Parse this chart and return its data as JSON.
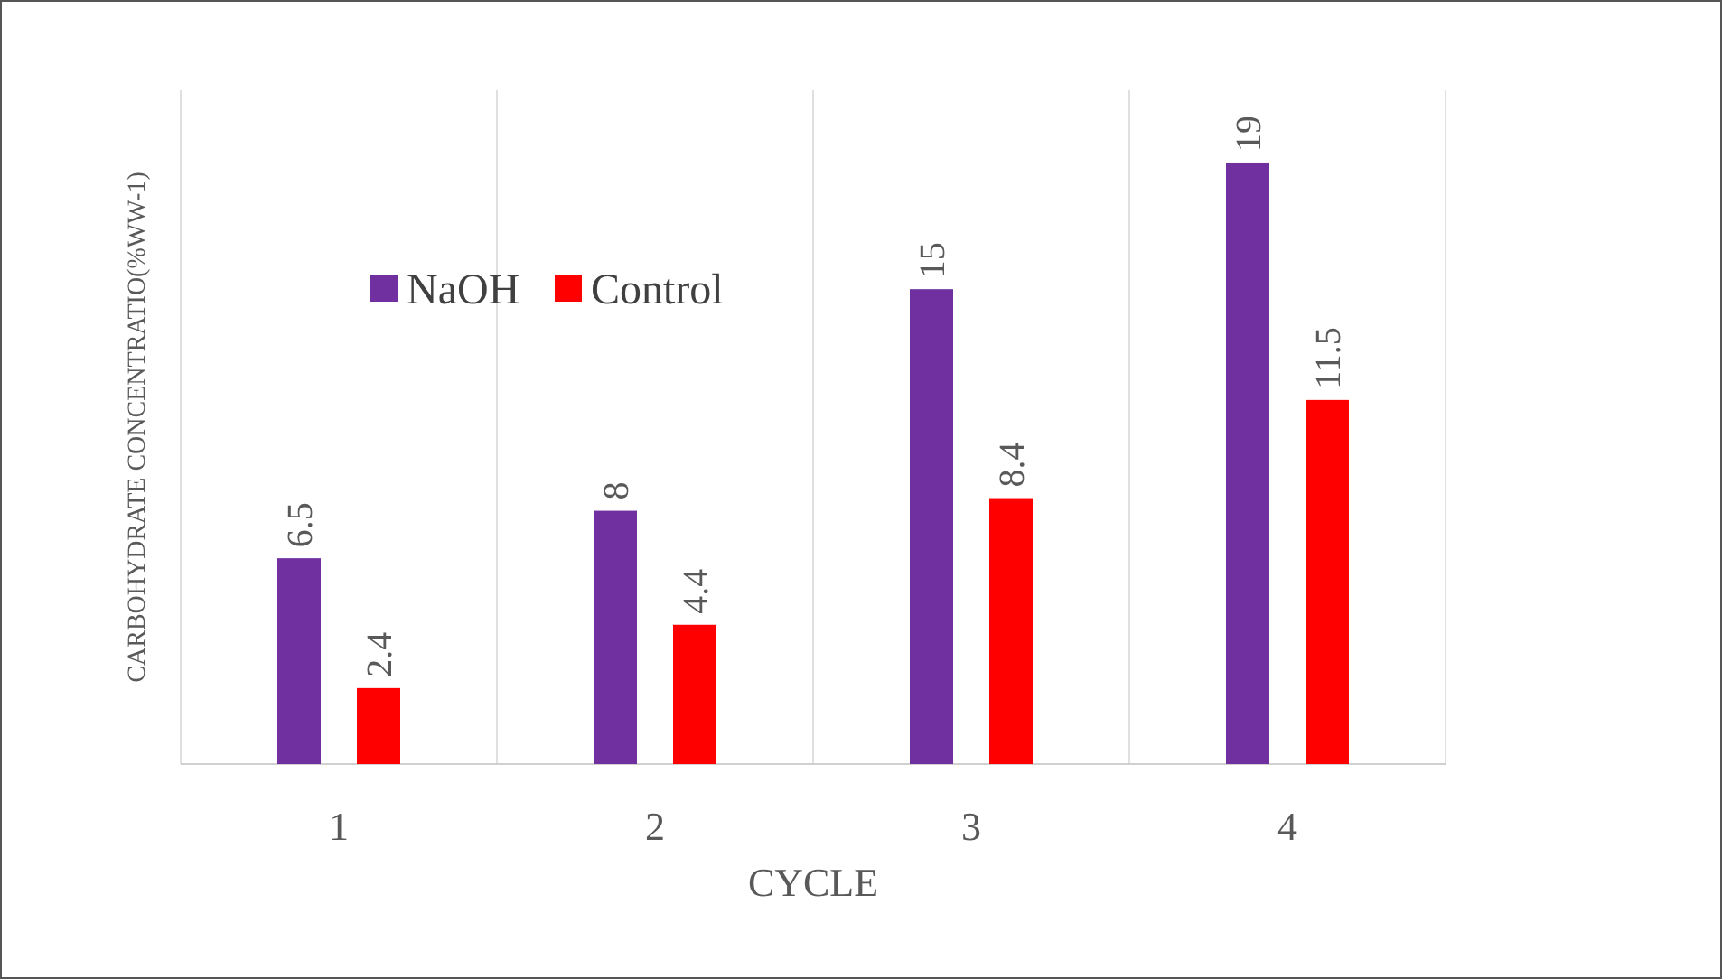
{
  "chart_data": {
    "type": "bar",
    "xlabel": "CYCLE",
    "ylabel": "CARBOHYDRATE CONCENTRATIO(%WW-1)",
    "categories": [
      "1",
      "2",
      "3",
      "4"
    ],
    "series": [
      {
        "name": "NaOH",
        "color": "#7030a0",
        "values": [
          6.5,
          8,
          15,
          19
        ]
      },
      {
        "name": "Control",
        "color": "#ff0000",
        "values": [
          2.4,
          4.4,
          8.4,
          11.5
        ]
      }
    ],
    "data_labels": true,
    "grid": "x",
    "legend": "top left"
  }
}
